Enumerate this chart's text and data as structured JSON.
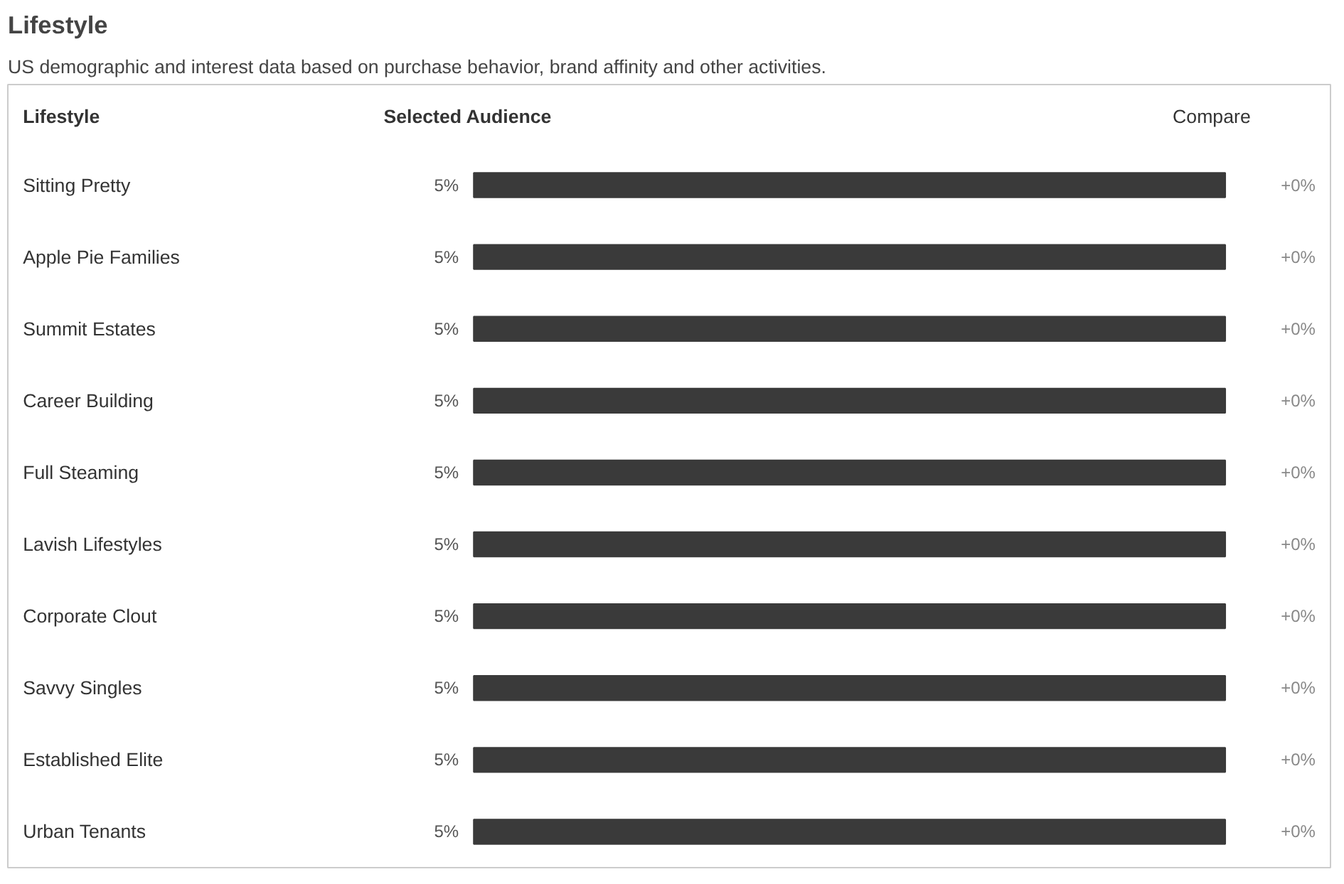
{
  "chart_data": {
    "type": "bar",
    "orientation": "horizontal",
    "title": "Lifestyle",
    "subtitle": "US demographic and interest data based on purchase behavior, brand affinity and other activities.",
    "categories": [
      "Sitting Pretty",
      "Apple Pie Families",
      "Summit Estates",
      "Career Building",
      "Full Steaming",
      "Lavish Lifestyles",
      "Corporate Clout",
      "Savvy Singles",
      "Established Elite",
      "Urban Tenants"
    ],
    "values": [
      5,
      5,
      5,
      5,
      5,
      5,
      5,
      5,
      5,
      5
    ],
    "value_labels": [
      "5%",
      "5%",
      "5%",
      "5%",
      "5%",
      "5%",
      "5%",
      "5%",
      "5%",
      "5%"
    ],
    "color": "#3a3a3a",
    "annotations": [
      "Lifestyle",
      "Selected Audience",
      "Compare",
      "+0%",
      "+0%",
      "+0%",
      "+0%",
      "+0%",
      "+0%",
      "+0%",
      "+0%",
      "+0%",
      "+0%"
    ]
  }
}
